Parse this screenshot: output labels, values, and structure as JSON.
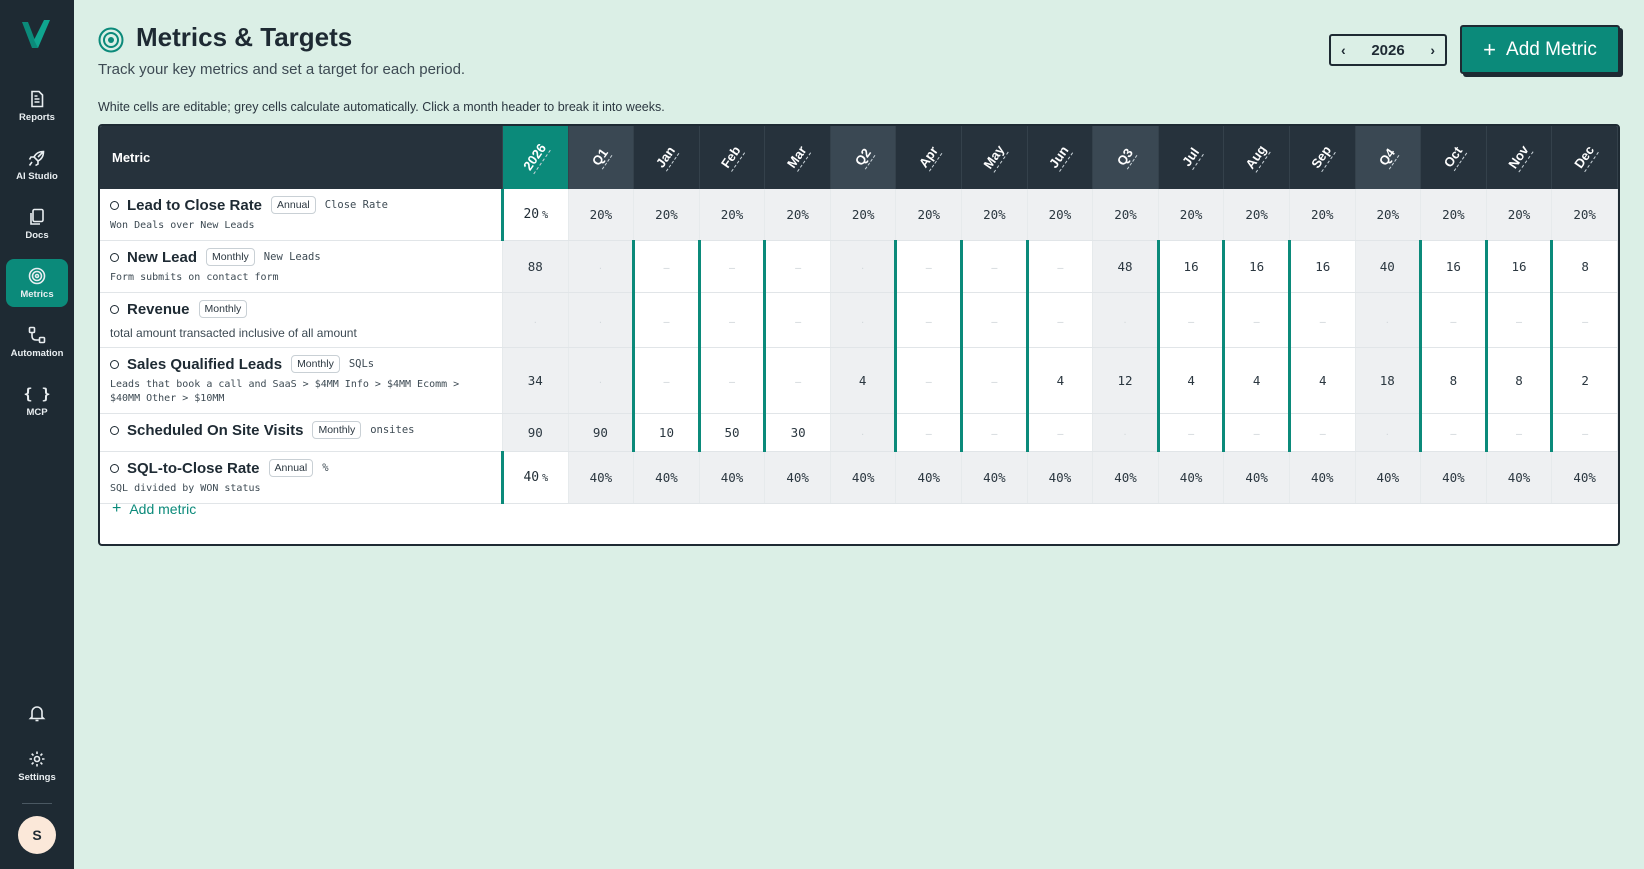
{
  "sidebar": {
    "items": [
      {
        "label": "Reports",
        "icon": "reports-icon",
        "active": false
      },
      {
        "label": "AI Studio",
        "icon": "rocket-icon",
        "active": false
      },
      {
        "label": "Docs",
        "icon": "docs-icon",
        "active": false
      },
      {
        "label": "Metrics",
        "icon": "target-icon",
        "active": true
      },
      {
        "label": "Automation",
        "icon": "automation-icon",
        "active": false
      },
      {
        "label": "MCP",
        "icon": "braces-icon",
        "active": false
      }
    ],
    "settings_label": "Settings",
    "avatar_initial": "S"
  },
  "header": {
    "title": "Metrics & Targets",
    "subtitle": "Track your key metrics and set a target for each period.",
    "hint": "White cells are editable; grey cells calculate automatically. Click a month header to break it into weeks.",
    "year": "2026",
    "add_button": "Add Metric",
    "accent": "#0b8a7a"
  },
  "table": {
    "metric_header": "Metric",
    "columns": [
      "2026",
      "Q1",
      "Jan",
      "Feb",
      "Mar",
      "Q2",
      "Apr",
      "May",
      "Jun",
      "Q3",
      "Jul",
      "Aug",
      "Sep",
      "Q4",
      "Oct",
      "Nov",
      "Dec"
    ],
    "rows": [
      {
        "name": "Lead to Close Rate",
        "badge": "Annual",
        "unit": "Close Rate",
        "desc": "Won Deals over New Leads",
        "values": [
          "20",
          "20%",
          "20%",
          "20%",
          "20%",
          "20%",
          "20%",
          "20%",
          "20%",
          "20%",
          "20%",
          "20%",
          "20%",
          "20%",
          "20%",
          "20%",
          "20%"
        ],
        "year_suffix": "%"
      },
      {
        "name": "New Lead",
        "badge": "Monthly",
        "unit": "New Leads",
        "desc": "Form submits on contact form",
        "values": [
          "88",
          "·",
          "–",
          "–",
          "–",
          "·",
          "–",
          "–",
          "–",
          "48",
          "16",
          "16",
          "16",
          "40",
          "16",
          "16",
          "8"
        ]
      },
      {
        "name": "Revenue",
        "badge": "Monthly",
        "unit": "",
        "desc": "total amount transacted inclusive of all amount",
        "values": [
          "·",
          "·",
          "–",
          "–",
          "–",
          "·",
          "–",
          "–",
          "–",
          "·",
          "–",
          "–",
          "–",
          "·",
          "–",
          "–",
          "–"
        ]
      },
      {
        "name": "Sales Qualified Leads",
        "badge": "Monthly",
        "unit": "SQLs",
        "desc": "Leads that book a call and SaaS > $4MM Info > $4MM Ecomm > $40MM Other  > $10MM",
        "values": [
          "34",
          "·",
          "–",
          "–",
          "–",
          "4",
          "–",
          "–",
          "4",
          "12",
          "4",
          "4",
          "4",
          "18",
          "8",
          "8",
          "2"
        ]
      },
      {
        "name": "Scheduled On Site Visits",
        "badge": "Monthly",
        "unit": "onsites",
        "desc": "",
        "values": [
          "90",
          "90",
          "10",
          "50",
          "30",
          "·",
          "–",
          "–",
          "–",
          "·",
          "–",
          "–",
          "–",
          "·",
          "–",
          "–",
          "–"
        ]
      },
      {
        "name": "SQL-to-Close Rate",
        "badge": "Annual",
        "unit": "%",
        "desc": "SQL divided by WON status",
        "values": [
          "40",
          "40%",
          "40%",
          "40%",
          "40%",
          "40%",
          "40%",
          "40%",
          "40%",
          "40%",
          "40%",
          "40%",
          "40%",
          "40%",
          "40%",
          "40%",
          "40%"
        ],
        "year_suffix": "%"
      }
    ],
    "add_metric_label": "Add metric"
  }
}
